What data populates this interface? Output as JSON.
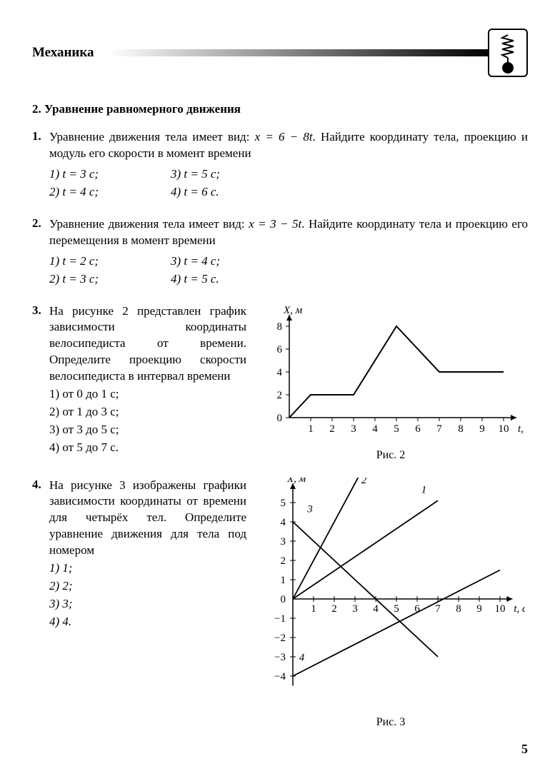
{
  "header": {
    "title": "Механика"
  },
  "subsection": "2. Уравнение равномерного движения",
  "p1": {
    "num": "1.",
    "text_before": "Уравнение движения тела имеет вид: ",
    "eq": "x = 6 − 8t",
    "text_after": ". Найдите координату тела, проекцию и модуль его скорости в момент времени",
    "o1": "1)  t = 3 с;",
    "o2": "2)  t = 4 с;",
    "o3": "3)  t = 5 с;",
    "o4": "4)  t = 6 с."
  },
  "p2": {
    "num": "2.",
    "text_before": "Уравнение движения тела имеет вид: ",
    "eq": "x = 3 − 5t",
    "text_after": ". Найдите координату тела и проекцию его перемещения в момент времени",
    "o1": "1)  t = 2 с;",
    "o2": "2)  t = 3 с;",
    "o3": "3)  t = 4 с;",
    "o4": "4)  t = 5 с."
  },
  "p3": {
    "num": "3.",
    "text": "На рисунке 2 представлен график зависимости координаты велосипедиста от времени. Определите проекцию скорости велосипедиста в интервал времени",
    "o1": "1)  от 0 до 1 с;",
    "o2": "2)  от 1 до 3 с;",
    "o3": "3)  от 3 до 5 с;",
    "o4": "4)  от 5 до 7 с.",
    "caption": "Рис. 2",
    "chart": {
      "ylabel": "X, м",
      "xlabel": "t, с",
      "xticks": [
        1,
        2,
        3,
        4,
        5,
        6,
        7,
        8,
        9,
        10
      ],
      "yticks": [
        0,
        2,
        4,
        6,
        8
      ],
      "points": [
        [
          0,
          0
        ],
        [
          1,
          2
        ],
        [
          3,
          2
        ],
        [
          5,
          8
        ],
        [
          7,
          4
        ],
        [
          10,
          4
        ]
      ],
      "axis_color": "#000000",
      "line_color": "#000000",
      "line_width": 2,
      "text_color": "#000000",
      "fontsize": 15
    }
  },
  "p4": {
    "num": "4.",
    "text": "На рисунке 3 изображены графики зависимости координаты от времени для четырёх тел. Определите уравнение движения для тела под номером",
    "o1": "1)  1;",
    "o2": "2)  2;",
    "o3": "3)  3;",
    "o4": "4)  4.",
    "caption": "Рис. 3",
    "chart": {
      "ylabel": "X, м",
      "xlabel": "t, с",
      "xticks": [
        1,
        2,
        3,
        4,
        5,
        6,
        7,
        8,
        9,
        10
      ],
      "yticks": [
        -4,
        -3,
        -2,
        -1,
        0,
        1,
        2,
        3,
        4,
        5
      ],
      "lines": {
        "1": {
          "p1": [
            0,
            0
          ],
          "p2": [
            7,
            5.1
          ],
          "label_pos": [
            6.2,
            5.5
          ]
        },
        "2": {
          "p1": [
            0,
            0
          ],
          "p2": [
            3.2,
            6.4
          ],
          "label_pos": [
            3.3,
            6.0
          ]
        },
        "3": {
          "p1": [
            0,
            4
          ],
          "p2": [
            7,
            -3
          ],
          "label_pos": [
            0.7,
            4.5
          ]
        },
        "4": {
          "p1": [
            0,
            -4
          ],
          "p2": [
            10,
            1.5
          ],
          "label_pos": [
            0.3,
            -3.2
          ]
        }
      },
      "axis_color": "#000000",
      "line_color": "#000000",
      "line_width": 1.8,
      "text_color": "#000000",
      "fontsize": 15
    }
  },
  "pagenum": "5"
}
